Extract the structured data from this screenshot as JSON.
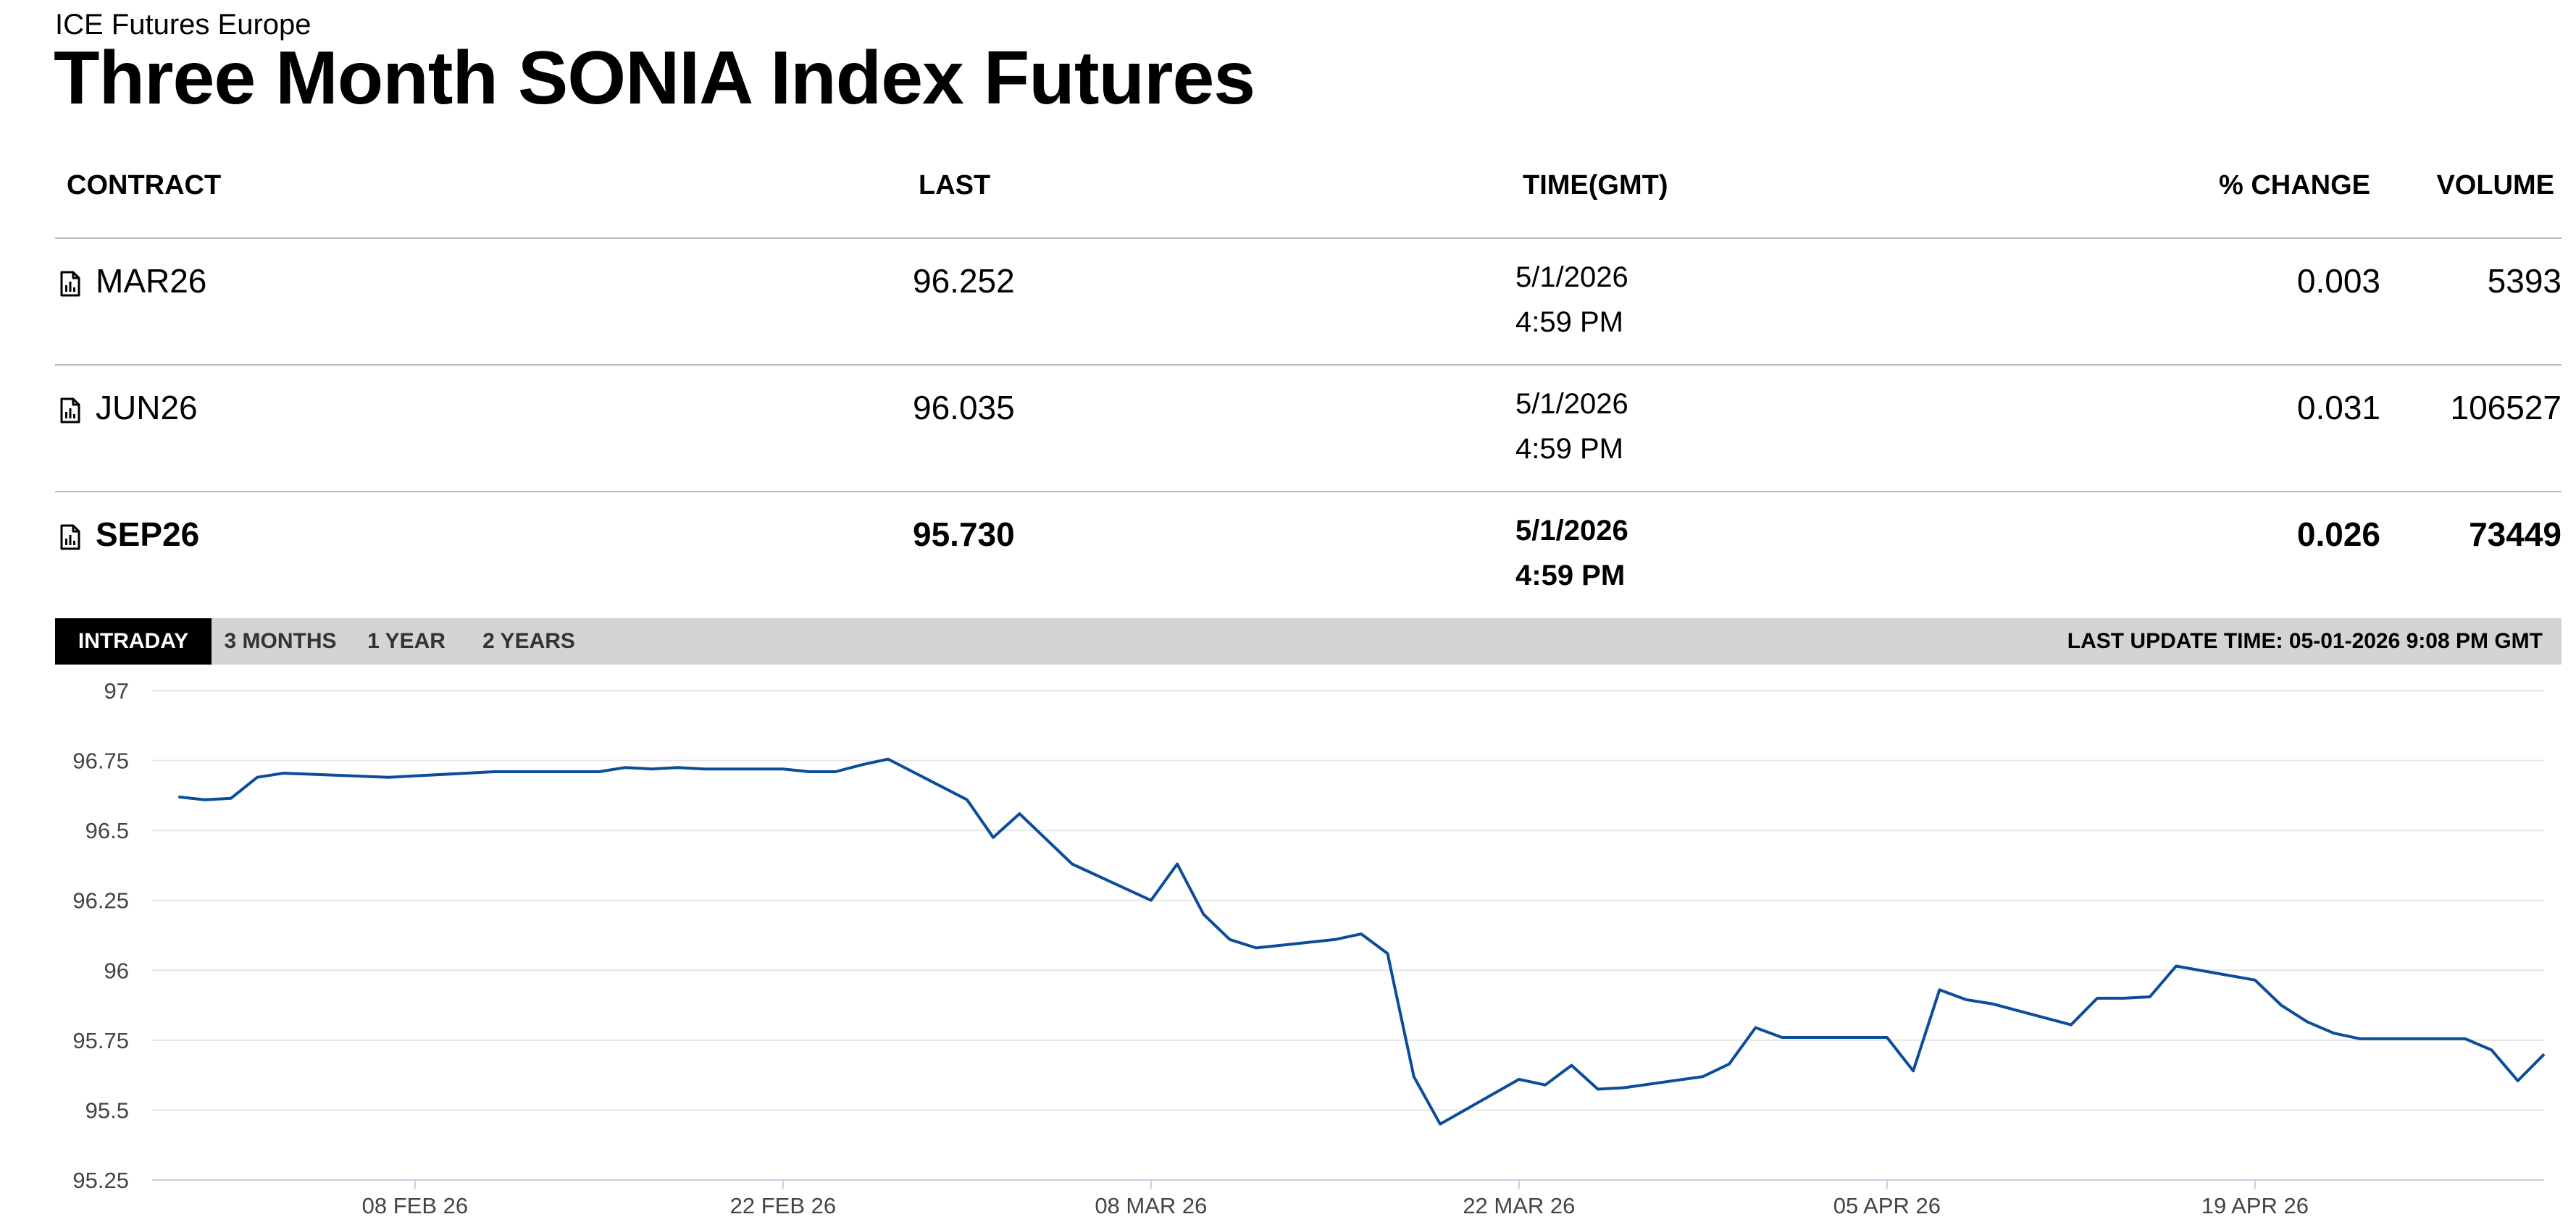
{
  "header": {
    "exchange": "ICE Futures Europe",
    "title": "Three Month SONIA Index Futures"
  },
  "table": {
    "columns": {
      "contract": "CONTRACT",
      "last": "LAST",
      "time": "TIME(GMT)",
      "change": "% CHANGE",
      "volume": "VOLUME"
    },
    "rows": [
      {
        "contract": "MAR26",
        "last": "96.252",
        "date": "5/1/2026",
        "time": "4:59 PM",
        "change": "0.003",
        "volume": "5393",
        "selected": false
      },
      {
        "contract": "JUN26",
        "last": "96.035",
        "date": "5/1/2026",
        "time": "4:59 PM",
        "change": "0.031",
        "volume": "106527",
        "selected": false
      },
      {
        "contract": "SEP26",
        "last": "95.730",
        "date": "5/1/2026",
        "time": "4:59 PM",
        "change": "0.026",
        "volume": "73449",
        "selected": true
      }
    ],
    "row_icon": "chart-document-icon"
  },
  "tabs": {
    "items": [
      "INTRADAY",
      "3 MONTHS",
      "1 YEAR",
      "2 YEARS"
    ],
    "active": "INTRADAY",
    "last_update": "LAST UPDATE TIME: 05-01-2026 9:08 PM GMT"
  },
  "colors": {
    "line": "#0b4d9a",
    "active_tab_bg": "#000000",
    "tab_bar_bg": "#d4d4d4",
    "gridline": "#e6e6e6"
  },
  "chart_data": {
    "type": "line",
    "title": "",
    "xlabel": "",
    "ylabel": "",
    "ylim": [
      95.25,
      97
    ],
    "yticks": [
      95.25,
      95.5,
      95.75,
      96,
      96.25,
      96.5,
      96.75,
      97
    ],
    "ytick_labels": [
      "95.25",
      "95.5",
      "95.75",
      "96",
      "96.25",
      "96.5",
      "96.75",
      "97"
    ],
    "xlim": [
      "2026-01-29",
      "2026-04-30"
    ],
    "xticks": [
      "2026-02-08",
      "2026-02-22",
      "2026-03-08",
      "2026-03-22",
      "2026-04-05",
      "2026-04-19"
    ],
    "xtick_labels": [
      "08 FEB 26",
      "22 FEB 26",
      "08 MAR 26",
      "22 MAR 26",
      "05 APR 26",
      "19 APR 26"
    ],
    "grid": true,
    "legend": "none",
    "series": [
      {
        "name": "",
        "points": [
          [
            "2026-01-30",
            96.62
          ],
          [
            "2026-01-31",
            96.61
          ],
          [
            "2026-02-01",
            96.615
          ],
          [
            "2026-02-02",
            96.69
          ],
          [
            "2026-02-03",
            96.705
          ],
          [
            "2026-02-07",
            96.69
          ],
          [
            "2026-02-08",
            96.695
          ],
          [
            "2026-02-11",
            96.71
          ],
          [
            "2026-02-15",
            96.71
          ],
          [
            "2026-02-16",
            96.725
          ],
          [
            "2026-02-17",
            96.72
          ],
          [
            "2026-02-18",
            96.725
          ],
          [
            "2026-02-19",
            96.72
          ],
          [
            "2026-02-22",
            96.72
          ],
          [
            "2026-02-23",
            96.71
          ],
          [
            "2026-02-24",
            96.71
          ],
          [
            "2026-02-25",
            96.735
          ],
          [
            "2026-02-26",
            96.755
          ],
          [
            "2026-03-01",
            96.61
          ],
          [
            "2026-03-02",
            96.475
          ],
          [
            "2026-03-03",
            96.56
          ],
          [
            "2026-03-05",
            96.38
          ],
          [
            "2026-03-08",
            96.25
          ],
          [
            "2026-03-09",
            96.38
          ],
          [
            "2026-03-10",
            96.2
          ],
          [
            "2026-03-11",
            96.11
          ],
          [
            "2026-03-12",
            96.08
          ],
          [
            "2026-03-15",
            96.11
          ],
          [
            "2026-03-16",
            96.13
          ],
          [
            "2026-03-17",
            96.06
          ],
          [
            "2026-03-18",
            95.62
          ],
          [
            "2026-03-19",
            95.45
          ],
          [
            "2026-03-22",
            95.61
          ],
          [
            "2026-03-23",
            95.59
          ],
          [
            "2026-03-24",
            95.66
          ],
          [
            "2026-03-25",
            95.575
          ],
          [
            "2026-03-26",
            95.58
          ],
          [
            "2026-03-29",
            95.62
          ],
          [
            "2026-03-30",
            95.665
          ],
          [
            "2026-03-31",
            95.795
          ],
          [
            "2026-04-01",
            95.76
          ],
          [
            "2026-04-05",
            95.76
          ],
          [
            "2026-04-06",
            95.64
          ],
          [
            "2026-04-07",
            95.93
          ],
          [
            "2026-04-08",
            95.895
          ],
          [
            "2026-04-09",
            95.88
          ],
          [
            "2026-04-12",
            95.805
          ],
          [
            "2026-04-13",
            95.9
          ],
          [
            "2026-04-14",
            95.9
          ],
          [
            "2026-04-15",
            95.905
          ],
          [
            "2026-04-16",
            96.015
          ],
          [
            "2026-04-19",
            95.965
          ],
          [
            "2026-04-20",
            95.875
          ],
          [
            "2026-04-21",
            95.815
          ],
          [
            "2026-04-22",
            95.775
          ],
          [
            "2026-04-23",
            95.755
          ],
          [
            "2026-04-26",
            95.755
          ],
          [
            "2026-04-27",
            95.755
          ],
          [
            "2026-04-28",
            95.715
          ],
          [
            "2026-04-29",
            95.605
          ],
          [
            "2026-04-30",
            95.7
          ]
        ]
      }
    ]
  }
}
